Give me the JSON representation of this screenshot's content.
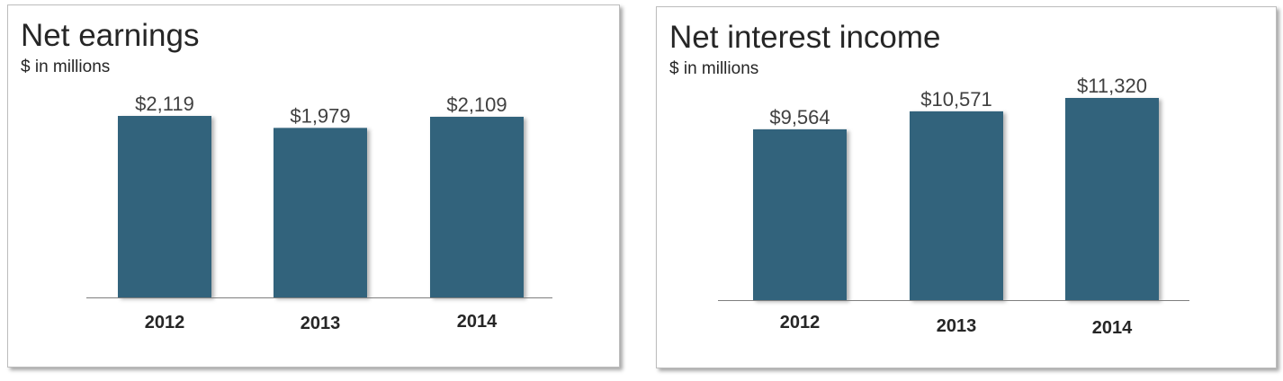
{
  "colors": {
    "bar": "#33637c",
    "axis": "#7f7f7f"
  },
  "chart_data": [
    {
      "type": "bar",
      "title": "Net earnings",
      "subtitle": "$ in millions",
      "categories": [
        "2012",
        "2013",
        "2014"
      ],
      "values": [
        2119,
        1979,
        2109
      ],
      "value_labels": [
        "$2,119",
        "$1,979",
        "$2,109"
      ],
      "ylim": [
        0,
        2119
      ],
      "grid": false,
      "legend": "none"
    },
    {
      "type": "bar",
      "title": "Net interest income",
      "subtitle": "$ in millions",
      "categories": [
        "2012",
        "2013",
        "2014"
      ],
      "values": [
        9564,
        10571,
        11320
      ],
      "value_labels": [
        "$9,564",
        "$10,571",
        "$11,320"
      ],
      "ylim": [
        0,
        11320
      ],
      "grid": false,
      "legend": "none"
    }
  ]
}
